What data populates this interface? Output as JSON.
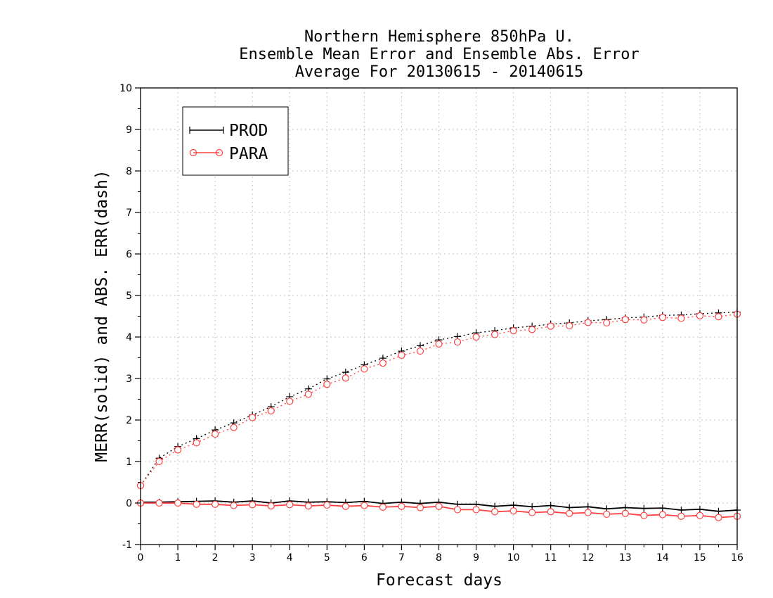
{
  "chart_data": {
    "type": "line",
    "title_lines": [
      "Northern Hemisphere 850hPa U.",
      "Ensemble Mean Error and Ensemble Abs. Error",
      "Average For 20130615 - 20140615"
    ],
    "xlabel": "Forecast days",
    "ylabel": "MERR(solid) and ABS. ERR(dash)",
    "xlim": [
      0,
      16
    ],
    "ylim": [
      -1,
      10
    ],
    "x_ticks": [
      0,
      1,
      2,
      3,
      4,
      5,
      6,
      7,
      8,
      9,
      10,
      11,
      12,
      13,
      14,
      15,
      16
    ],
    "y_ticks": [
      -1,
      0,
      1,
      2,
      3,
      4,
      5,
      6,
      7,
      8,
      9,
      10
    ],
    "x_tick_labels": [
      "0",
      "1",
      "2",
      "3",
      "4",
      "5",
      "6",
      "7",
      "8",
      "9",
      "10",
      "11",
      "12",
      "13",
      "14",
      "15",
      "16"
    ],
    "y_tick_labels": [
      "-1",
      "0",
      "1",
      "2",
      "3",
      "4",
      "5",
      "6",
      "7",
      "8",
      "9",
      "10"
    ],
    "grid": true,
    "legend_position": "top-left",
    "x": [
      0,
      0.5,
      1,
      1.5,
      2,
      2.5,
      3,
      3.5,
      4,
      4.5,
      5,
      5.5,
      6,
      6.5,
      7,
      7.5,
      8,
      8.5,
      9,
      9.5,
      10,
      10.5,
      11,
      11.5,
      12,
      12.5,
      13,
      13.5,
      14,
      14.5,
      15,
      15.5,
      16
    ],
    "series": [
      {
        "name": "PROD",
        "color": "#000000",
        "marker": "plus",
        "merr": [
          0.02,
          0.02,
          0.03,
          0.04,
          0.05,
          0.02,
          0.05,
          0.0,
          0.05,
          0.02,
          0.03,
          0.01,
          0.04,
          -0.01,
          0.02,
          -0.01,
          0.02,
          -0.03,
          -0.03,
          -0.08,
          -0.05,
          -0.09,
          -0.06,
          -0.11,
          -0.09,
          -0.14,
          -0.11,
          -0.13,
          -0.12,
          -0.17,
          -0.15,
          -0.2,
          -0.17
        ],
        "abs_err": [
          0.42,
          1.08,
          1.36,
          1.55,
          1.76,
          1.93,
          2.12,
          2.32,
          2.56,
          2.75,
          2.99,
          3.15,
          3.33,
          3.49,
          3.66,
          3.79,
          3.93,
          4.01,
          4.1,
          4.15,
          4.22,
          4.26,
          4.31,
          4.34,
          4.39,
          4.42,
          4.46,
          4.48,
          4.52,
          4.53,
          4.56,
          4.58,
          4.6
        ]
      },
      {
        "name": "PARA",
        "color": "#ff4040",
        "marker": "circle",
        "merr": [
          0.0,
          0.0,
          0.0,
          -0.03,
          -0.03,
          -0.06,
          -0.04,
          -0.07,
          -0.04,
          -0.07,
          -0.05,
          -0.08,
          -0.06,
          -0.1,
          -0.08,
          -0.11,
          -0.08,
          -0.16,
          -0.16,
          -0.21,
          -0.19,
          -0.23,
          -0.21,
          -0.25,
          -0.23,
          -0.27,
          -0.25,
          -0.3,
          -0.28,
          -0.32,
          -0.3,
          -0.35,
          -0.32
        ],
        "abs_err": [
          0.42,
          1.0,
          1.28,
          1.45,
          1.66,
          1.82,
          2.06,
          2.22,
          2.45,
          2.62,
          2.86,
          3.01,
          3.23,
          3.37,
          3.56,
          3.66,
          3.83,
          3.88,
          4.0,
          4.06,
          4.15,
          4.18,
          4.26,
          4.27,
          4.35,
          4.34,
          4.42,
          4.41,
          4.47,
          4.45,
          4.51,
          4.49,
          4.55
        ]
      }
    ]
  }
}
